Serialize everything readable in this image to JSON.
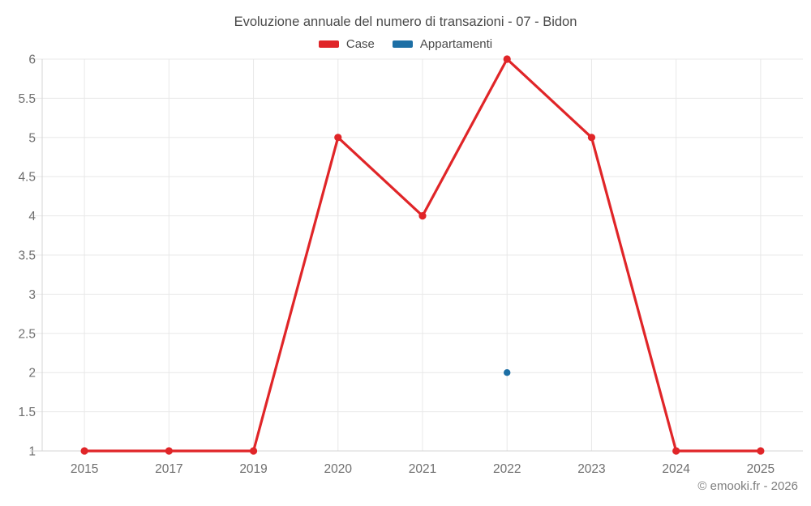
{
  "chart_data": {
    "type": "line",
    "title": "Evoluzione annuale del numero di transazioni - 07 - Bidon",
    "categories": [
      "2015",
      "2017",
      "2019",
      "2020",
      "2021",
      "2022",
      "2023",
      "2024",
      "2025"
    ],
    "series": [
      {
        "name": "Case",
        "color": "#e02528",
        "marker_radius": 4.6,
        "values": [
          1,
          1,
          1,
          5,
          4,
          6,
          5,
          1,
          1
        ]
      },
      {
        "name": "Appartamenti",
        "color": "#1d6fa5",
        "marker_radius": 4.2,
        "values": [
          null,
          null,
          null,
          null,
          null,
          2,
          null,
          null,
          null
        ]
      }
    ],
    "ylim": [
      1,
      6
    ],
    "ytick_step": 0.5,
    "ytick_labels": [
      "1",
      "1.5",
      "2",
      "2.5",
      "3",
      "3.5",
      "4",
      "4.5",
      "5",
      "5.5",
      "6"
    ],
    "grid": true,
    "legend_position": "top-center",
    "line_width": 3.2,
    "xlabel": "",
    "ylabel": ""
  },
  "footer": {
    "copyright": "© emooki.fr - 2026"
  },
  "colors": {
    "background": "#ffffff",
    "grid": "#e8e8e8",
    "axis": "#d4d4d4",
    "title_text": "#4a4a4a",
    "legend_text": "#4a4a4a",
    "tick_text": "#6f6f6f",
    "copyright_text": "#7d7d7d"
  }
}
